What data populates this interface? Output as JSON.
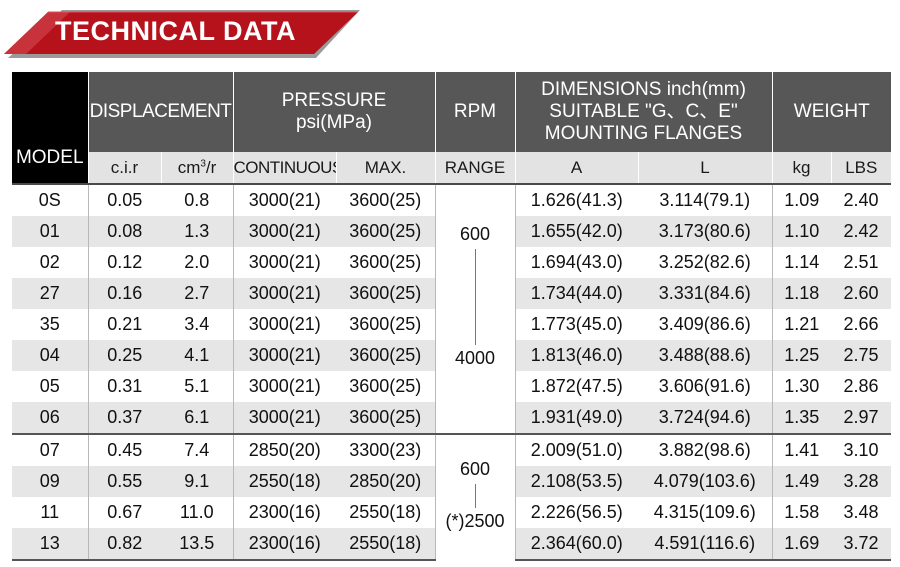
{
  "banner": {
    "title": "TECHNICAL DATA",
    "color": "#b5121b"
  },
  "headers": {
    "model": "MODEL",
    "displacement": "DISPLACEMENT",
    "pressure_line1": "PRESSURE",
    "pressure_line2": "psi(MPa)",
    "rpm": "RPM",
    "dim_line1": "DIMENSIONS inch(mm)",
    "dim_line2": "SUITABLE \"G、C、E\"",
    "dim_line3": "MOUNTING FLANGES",
    "weight": "WEIGHT",
    "cir": "c.i.r",
    "cm3r_base": "cm",
    "cm3r_sup": "3",
    "cm3r_tail": "/r",
    "continuous": "CONTINUOUS",
    "max": "MAX.",
    "range": "RANGE",
    "a": "A",
    "l": "L",
    "kg": "kg",
    "lbs": "LBS"
  },
  "rpm_groups": [
    {
      "top": "600",
      "bottom": "4000"
    },
    {
      "top": "600",
      "bottom": "(*)2500"
    }
  ],
  "rows": [
    {
      "model": "0S",
      "cir": "0.05",
      "cm3r": "0.8",
      "cont": "3000(21)",
      "max": "3600(25)",
      "a": "1.626(41.3)",
      "l": "3.114(79.1)",
      "kg": "1.09",
      "lbs": "2.40"
    },
    {
      "model": "01",
      "cir": "0.08",
      "cm3r": "1.3",
      "cont": "3000(21)",
      "max": "3600(25)",
      "a": "1.655(42.0)",
      "l": "3.173(80.6)",
      "kg": "1.10",
      "lbs": "2.42"
    },
    {
      "model": "02",
      "cir": "0.12",
      "cm3r": "2.0",
      "cont": "3000(21)",
      "max": "3600(25)",
      "a": "1.694(43.0)",
      "l": "3.252(82.6)",
      "kg": "1.14",
      "lbs": "2.51"
    },
    {
      "model": "27",
      "cir": "0.16",
      "cm3r": "2.7",
      "cont": "3000(21)",
      "max": "3600(25)",
      "a": "1.734(44.0)",
      "l": "3.331(84.6)",
      "kg": "1.18",
      "lbs": "2.60"
    },
    {
      "model": "35",
      "cir": "0.21",
      "cm3r": "3.4",
      "cont": "3000(21)",
      "max": "3600(25)",
      "a": "1.773(45.0)",
      "l": "3.409(86.6)",
      "kg": "1.21",
      "lbs": "2.66"
    },
    {
      "model": "04",
      "cir": "0.25",
      "cm3r": "4.1",
      "cont": "3000(21)",
      "max": "3600(25)",
      "a": "1.813(46.0)",
      "l": "3.488(88.6)",
      "kg": "1.25",
      "lbs": "2.75"
    },
    {
      "model": "05",
      "cir": "0.31",
      "cm3r": "5.1",
      "cont": "3000(21)",
      "max": "3600(25)",
      "a": "1.872(47.5)",
      "l": "3.606(91.6)",
      "kg": "1.30",
      "lbs": "2.86"
    },
    {
      "model": "06",
      "cir": "0.37",
      "cm3r": "6.1",
      "cont": "3000(21)",
      "max": "3600(25)",
      "a": "1.931(49.0)",
      "l": "3.724(94.6)",
      "kg": "1.35",
      "lbs": "2.97"
    },
    {
      "model": "07",
      "cir": "0.45",
      "cm3r": "7.4",
      "cont": "2850(20)",
      "max": "3300(23)",
      "a": "2.009(51.0)",
      "l": "3.882(98.6)",
      "kg": "1.41",
      "lbs": "3.10"
    },
    {
      "model": "09",
      "cir": "0.55",
      "cm3r": "9.1",
      "cont": "2550(18)",
      "max": "2850(20)",
      "a": "2.108(53.5)",
      "l": "4.079(103.6)",
      "kg": "1.49",
      "lbs": "3.28"
    },
    {
      "model": "11",
      "cir": "0.67",
      "cm3r": "11.0",
      "cont": "2300(16)",
      "max": "2550(18)",
      "a": "2.226(56.5)",
      "l": "4.315(109.6)",
      "kg": "1.58",
      "lbs": "3.48"
    },
    {
      "model": "13",
      "cir": "0.82",
      "cm3r": "13.5",
      "cont": "2300(16)",
      "max": "2550(18)",
      "a": "2.364(60.0)",
      "l": "4.591(116.6)",
      "kg": "1.69",
      "lbs": "3.72"
    }
  ]
}
